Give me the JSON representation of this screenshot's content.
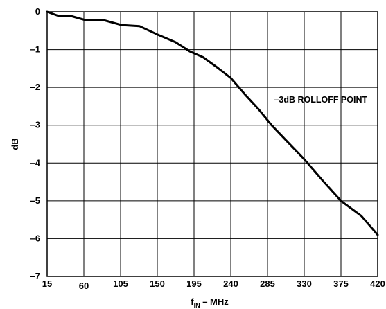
{
  "chart_data": {
    "type": "line",
    "title": "",
    "xlabel_main": "f",
    "xlabel_sub": "IN",
    "xlabel_rest": " – MHz",
    "ylabel": "dB",
    "xlim": [
      15,
      420
    ],
    "ylim": [
      -7,
      0
    ],
    "xticks": [
      15,
      60,
      105,
      150,
      195,
      240,
      285,
      330,
      375,
      420
    ],
    "xtick_labels": [
      "15",
      "60",
      "105",
      "150",
      "195",
      "240",
      "285",
      "330",
      "375",
      "420"
    ],
    "yticks": [
      0,
      -1,
      -2,
      -3,
      -4,
      -5,
      -6,
      -7
    ],
    "ytick_labels": [
      "0",
      "–1",
      "–2",
      "–3",
      "–4",
      "–5",
      "–6",
      "–7"
    ],
    "grid": true,
    "annotation": {
      "text": "–3dB ROLLOFF POINT",
      "x": 293,
      "y": -2.33
    },
    "series": [
      {
        "x": [
          15,
          28,
          44,
          62,
          84,
          106,
          128,
          150,
          172,
          190,
          206,
          222,
          240,
          258,
          275,
          290,
          310,
          330,
          352,
          375,
          400,
          420
        ],
        "y": [
          0,
          -0.1,
          -0.11,
          -0.22,
          -0.22,
          -0.35,
          -0.38,
          -0.6,
          -0.8,
          -1.05,
          -1.2,
          -1.45,
          -1.75,
          -2.2,
          -2.6,
          -3.0,
          -3.45,
          -3.9,
          -4.45,
          -5.0,
          -5.4,
          -5.9
        ]
      }
    ]
  }
}
